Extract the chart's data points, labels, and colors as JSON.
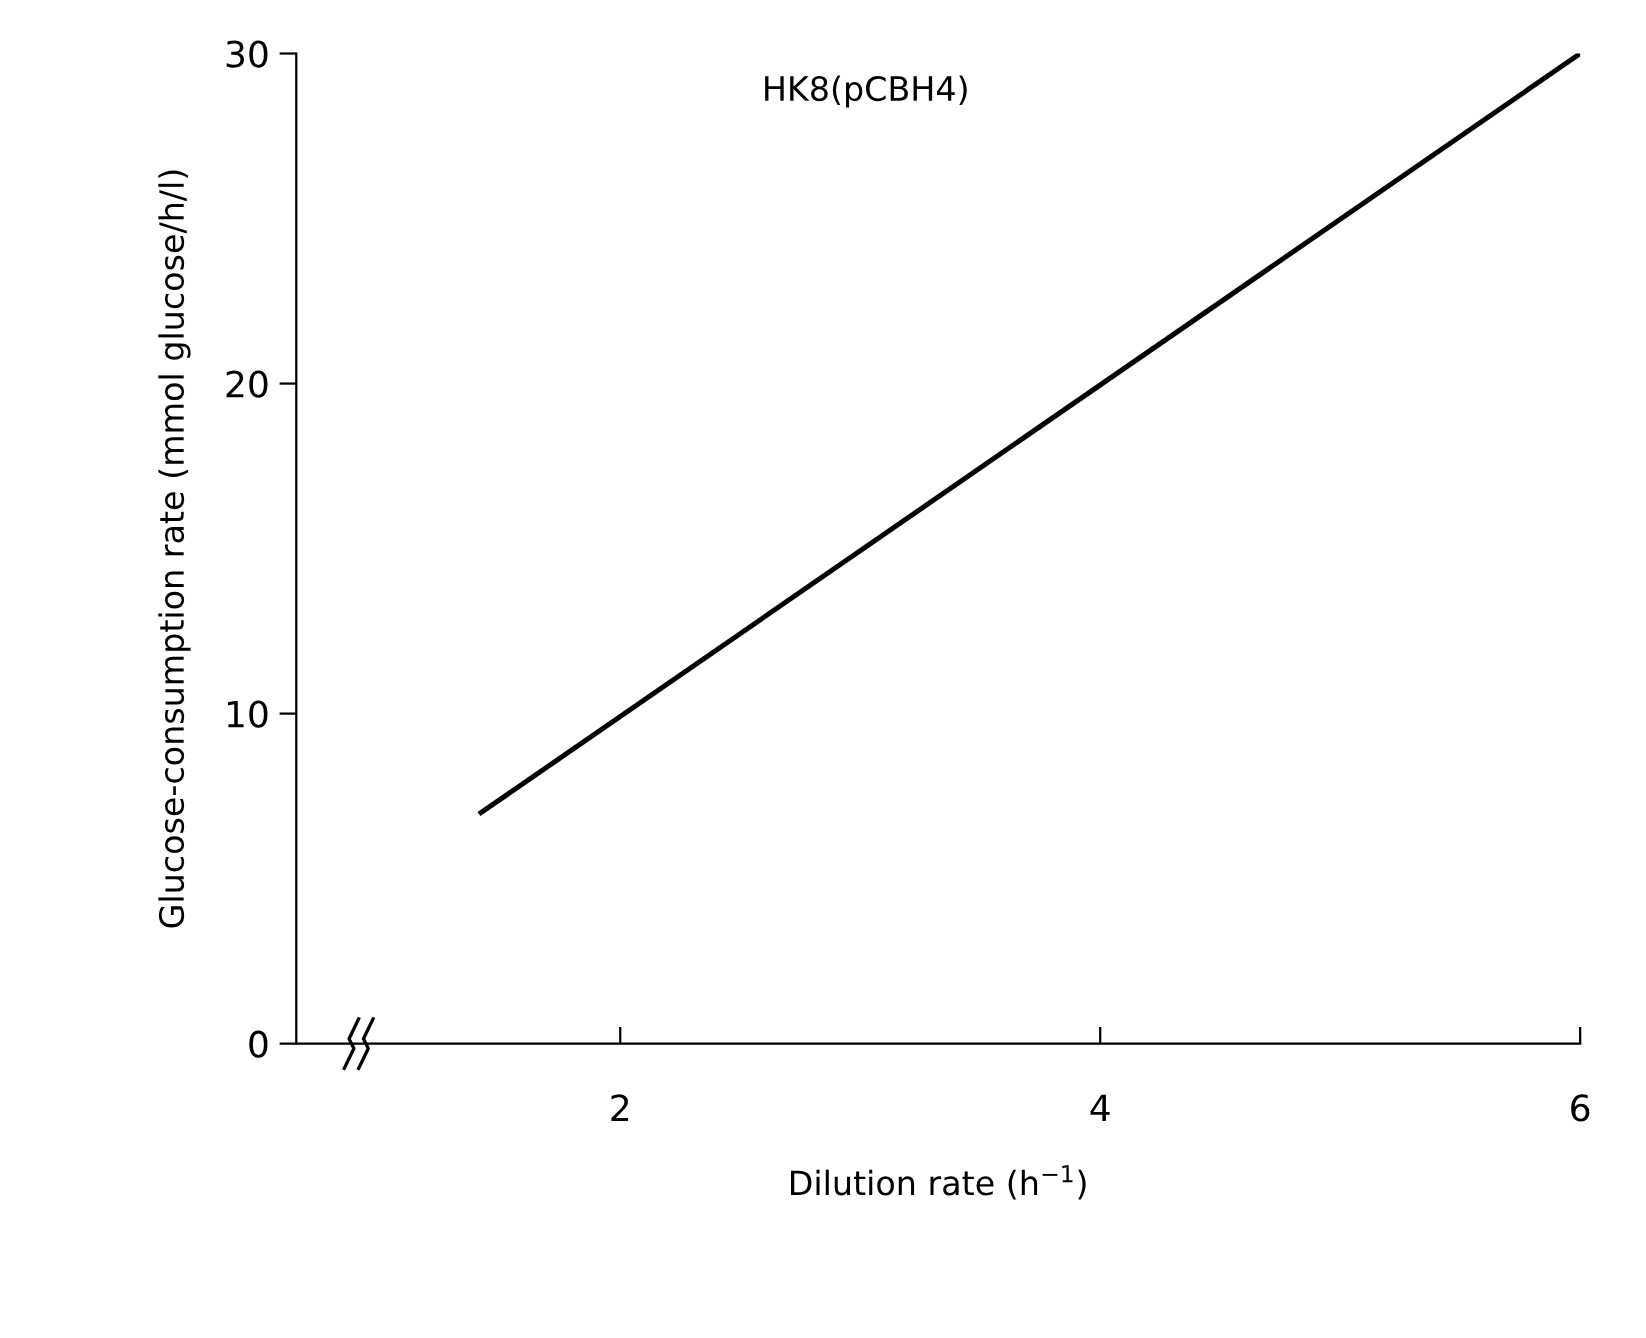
{
  "chart_data": {
    "type": "line",
    "xlabel": "Dilution rate (h$^{−1}$)",
    "ylabel": "Glucose-consumption rate (mmol glucose/h/l)",
    "series": [
      {
        "name": "HK8(pCBH4)",
        "color": "#000000",
        "x": [
          1.42,
          6
        ],
        "values": [
          7,
          30
        ]
      }
    ],
    "xlim": [
      0.65,
      6
    ],
    "ylim": [
      0,
      30
    ],
    "xticks": [
      2,
      4,
      6
    ],
    "yticks": [
      0,
      10,
      20,
      30
    ],
    "grid": false,
    "legend": false,
    "marker": "none",
    "line_style": "solid"
  }
}
